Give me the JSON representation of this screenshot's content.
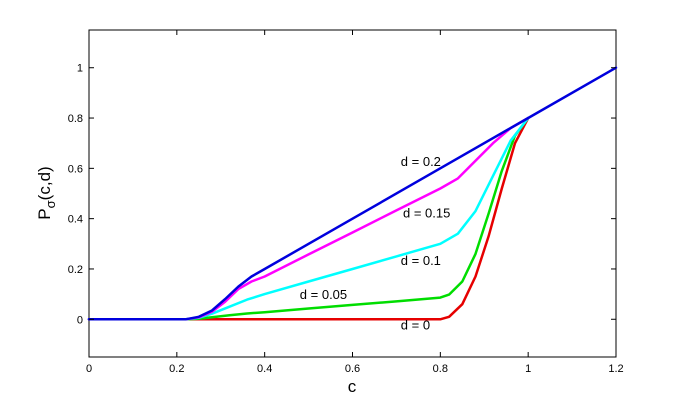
{
  "chart_data": {
    "type": "line",
    "xlabel": "c",
    "ylabel": {
      "main": "P",
      "sub": "σ",
      "tail": "(c,d)"
    },
    "xlim": [
      0,
      1.2
    ],
    "ylim": [
      -0.15,
      1.15
    ],
    "xticks": [
      0,
      0.2,
      0.4,
      0.6,
      0.8,
      1,
      1.2
    ],
    "xtick_labels": [
      "0",
      "0.2",
      "0.4",
      "0.6",
      "0.8",
      "1",
      "1.2"
    ],
    "yticks": [
      0,
      0.2,
      0.4,
      0.6,
      0.8,
      1
    ],
    "ytick_labels": [
      "0",
      "0.2",
      "0.4",
      "0.6",
      "0.8",
      "1"
    ],
    "grid": false,
    "series": [
      {
        "name": "d = 0",
        "color": "#e60000",
        "x": [
          0,
          0.2,
          0.4,
          0.6,
          0.8,
          0.82,
          0.85,
          0.88,
          0.91,
          0.94,
          0.97,
          1.0
        ],
        "y": [
          0,
          0,
          0,
          0,
          0,
          0.01,
          0.06,
          0.17,
          0.33,
          0.52,
          0.7,
          0.8
        ]
      },
      {
        "name": "d = 0.05",
        "color": "#00dd00",
        "x": [
          0,
          0.22,
          0.25,
          0.28,
          0.32,
          0.36,
          0.4,
          0.5,
          0.6,
          0.7,
          0.8,
          0.82,
          0.85,
          0.88,
          0.91,
          0.94,
          0.97,
          1.0
        ],
        "y": [
          0,
          0,
          0.002,
          0.008,
          0.016,
          0.023,
          0.028,
          0.043,
          0.057,
          0.071,
          0.086,
          0.098,
          0.15,
          0.26,
          0.42,
          0.59,
          0.73,
          0.8
        ]
      },
      {
        "name": "d = 0.1",
        "color": "#00ffff",
        "x": [
          0,
          0.22,
          0.25,
          0.28,
          0.32,
          0.36,
          0.4,
          0.5,
          0.6,
          0.7,
          0.8,
          0.84,
          0.88,
          0.92,
          0.96,
          1.0
        ],
        "y": [
          0,
          0,
          0.006,
          0.022,
          0.05,
          0.078,
          0.1,
          0.15,
          0.2,
          0.25,
          0.3,
          0.34,
          0.43,
          0.57,
          0.71,
          0.8
        ]
      },
      {
        "name": "d = 0.15",
        "color": "#ff00ff",
        "x": [
          0,
          0.22,
          0.25,
          0.28,
          0.31,
          0.34,
          0.37,
          0.4,
          0.5,
          0.6,
          0.7,
          0.8,
          0.84,
          0.88,
          0.92,
          0.96,
          1.0
        ],
        "y": [
          0,
          0,
          0.008,
          0.03,
          0.07,
          0.12,
          0.15,
          0.17,
          0.258,
          0.345,
          0.433,
          0.52,
          0.56,
          0.63,
          0.7,
          0.76,
          0.8
        ]
      },
      {
        "name": "d = 0.2",
        "color": "#0000dd",
        "x": [
          0,
          0.22,
          0.25,
          0.28,
          0.31,
          0.34,
          0.37,
          0.4,
          0.6,
          0.8,
          1.0,
          1.2
        ],
        "y": [
          0,
          0,
          0.01,
          0.035,
          0.08,
          0.13,
          0.17,
          0.2,
          0.4,
          0.6,
          0.8,
          1.0
        ]
      }
    ],
    "annotations": [
      {
        "text": "d = 0.2",
        "x": 0.71,
        "y": 0.61
      },
      {
        "text": "d = 0.15",
        "x": 0.715,
        "y": 0.405
      },
      {
        "text": "d = 0.1",
        "x": 0.71,
        "y": 0.215
      },
      {
        "text": "d = 0.05",
        "x": 0.48,
        "y": 0.08
      },
      {
        "text": "d = 0",
        "x": 0.71,
        "y": -0.04
      }
    ]
  }
}
